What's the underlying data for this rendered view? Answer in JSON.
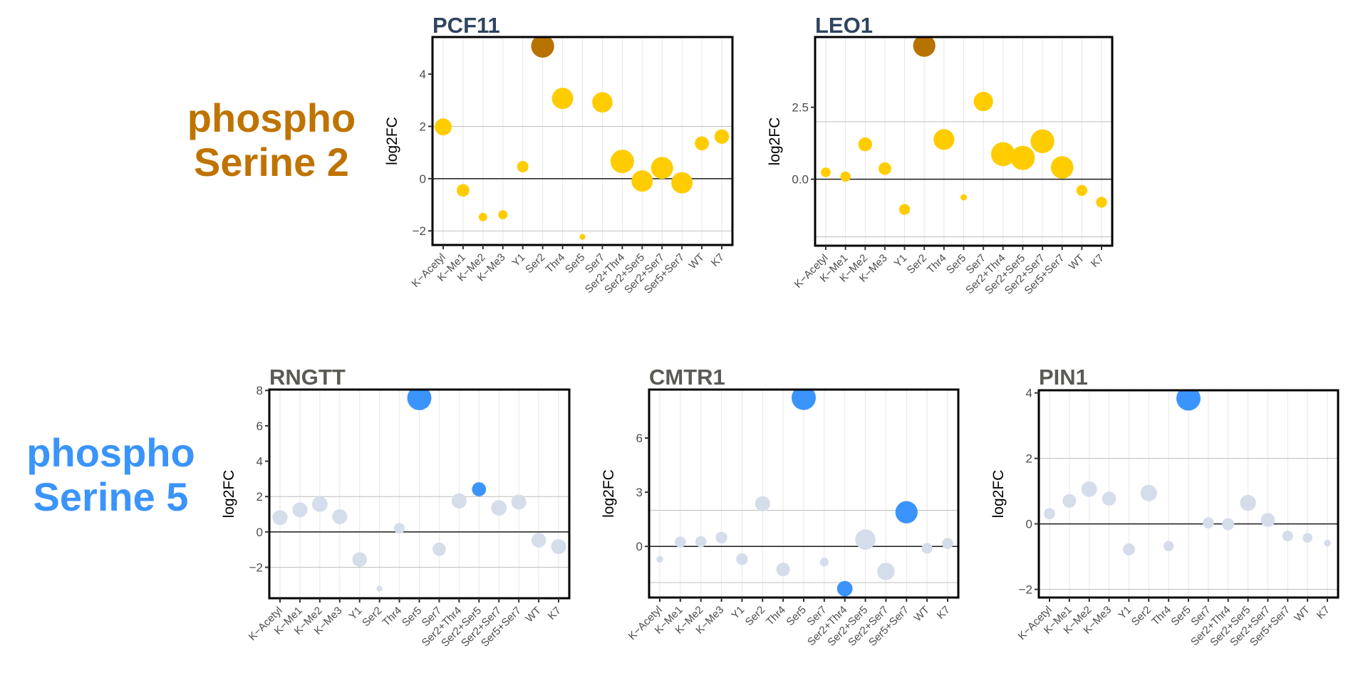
{
  "row_labels": {
    "serine2": {
      "line1": "phospho",
      "line2": "Serine 2",
      "color": "#bf7300"
    },
    "serine5": {
      "line1": "phospho",
      "line2": "Serine 5",
      "color": "#3a94fb"
    }
  },
  "colors": {
    "serine2_point": "#ffcc00",
    "serine2_highlight": "#b87200",
    "serine5_point": "#d5dcea",
    "serine5_highlight": "#3a94fb",
    "top_title": "#2e4460",
    "bottom_title": "#5b5b55"
  },
  "chart_data": [
    {
      "id": "pcf11",
      "type": "scatter",
      "title": "PCF11",
      "group": "serine2",
      "xlabel": "",
      "ylabel": "log2FC",
      "categories": [
        "K−Acetyl",
        "K−Me1",
        "K−Me2",
        "K−Me3",
        "Y1",
        "Ser2",
        "Thr4",
        "Ser5",
        "Ser7",
        "Ser2+Thr4",
        "Ser2+Ser5",
        "Ser2+Ser7",
        "Ser5+Ser7",
        "WT",
        "K7"
      ],
      "values": [
        1.98,
        -0.45,
        -1.47,
        -1.38,
        0.46,
        5.07,
        3.07,
        -2.23,
        2.92,
        0.66,
        -0.09,
        0.41,
        -0.16,
        1.35,
        1.61
      ],
      "sizes": [
        0.7,
        0.52,
        0.35,
        0.38,
        0.47,
        0.95,
        0.88,
        0.24,
        0.84,
        0.97,
        0.88,
        0.91,
        0.88,
        0.58,
        0.6
      ],
      "highlight": [
        false,
        false,
        false,
        false,
        false,
        true,
        false,
        false,
        false,
        false,
        false,
        false,
        false,
        false,
        false
      ],
      "yticks": [
        -2,
        0,
        2,
        4
      ],
      "ytick_labels": [
        "−2",
        "0",
        "2",
        "4"
      ],
      "reference_lines": [
        -2,
        2
      ],
      "zero_line": 0,
      "ylim": [
        -2.54,
        5.42
      ],
      "grid": true
    },
    {
      "id": "leo1",
      "type": "scatter",
      "title": "LEO1",
      "group": "serine2",
      "xlabel": "",
      "ylabel": "log2FC",
      "categories": [
        "K−Acetyl",
        "K−Me1",
        "K−Me2",
        "K−Me3",
        "Y1",
        "Ser2",
        "Thr4",
        "Ser5",
        "Ser7",
        "Ser2+Thr4",
        "Ser2+Ser5",
        "Ser2+Ser7",
        "Ser5+Ser7",
        "WT",
        "K7"
      ],
      "values": [
        0.24,
        0.09,
        1.21,
        0.37,
        -1.05,
        4.64,
        1.38,
        -0.63,
        2.7,
        0.87,
        0.74,
        1.32,
        0.41,
        -0.39,
        -0.8
      ],
      "sizes": [
        0.4,
        0.42,
        0.57,
        0.52,
        0.45,
        0.92,
        0.86,
        0.26,
        0.8,
        0.99,
        1.0,
        0.98,
        0.93,
        0.45,
        0.45
      ],
      "highlight": [
        false,
        false,
        false,
        false,
        false,
        true,
        false,
        false,
        false,
        false,
        false,
        false,
        false,
        false,
        false
      ],
      "yticks": [
        0.0,
        2.5
      ],
      "ytick_labels": [
        "0.0",
        "2.5"
      ],
      "reference_lines": [
        -2,
        2
      ],
      "zero_line": 0,
      "ylim": [
        -2.31,
        4.94
      ],
      "grid": true
    },
    {
      "id": "rngtt",
      "type": "scatter",
      "title": "RNGTT",
      "group": "serine5",
      "xlabel": "",
      "ylabel": "log2FC",
      "categories": [
        "K−Acetyl",
        "K−Me1",
        "K−Me2",
        "K−Me3",
        "Y1",
        "Ser2",
        "Thr4",
        "Ser5",
        "Ser7",
        "Ser2+Thr4",
        "Ser2+Ser5",
        "Ser2+Ser7",
        "Ser5+Ser7",
        "WT",
        "K7"
      ],
      "values": [
        0.81,
        1.25,
        1.57,
        0.86,
        -1.56,
        -3.21,
        0.2,
        7.57,
        -0.98,
        1.75,
        2.41,
        1.36,
        1.69,
        -0.47,
        -0.83
      ],
      "sizes": [
        0.62,
        0.62,
        0.64,
        0.62,
        0.6,
        0.24,
        0.44,
        1.0,
        0.55,
        0.62,
        0.58,
        0.64,
        0.62,
        0.6,
        0.62
      ],
      "highlight": [
        false,
        false,
        false,
        false,
        false,
        false,
        false,
        true,
        false,
        false,
        true,
        false,
        false,
        false,
        false
      ],
      "yticks": [
        -2,
        0,
        2,
        4,
        6,
        8
      ],
      "ytick_labels": [
        "−2",
        "0",
        "2",
        "4",
        "6",
        "8"
      ],
      "reference_lines": [
        -2,
        2
      ],
      "zero_line": 0,
      "ylim": [
        -3.75,
        8.05
      ],
      "grid": true
    },
    {
      "id": "cmtr1",
      "type": "scatter",
      "title": "CMTR1",
      "group": "serine5",
      "xlabel": "",
      "ylabel": "log2FC",
      "categories": [
        "K−Acetyl",
        "K−Me1",
        "K−Me2",
        "K−Me3",
        "Y1",
        "Ser2",
        "Thr4",
        "Ser5",
        "Ser7",
        "Ser2+Thr4",
        "Ser2+Ser5",
        "Ser2+Ser7",
        "Ser5+Ser7",
        "WT",
        "K7"
      ],
      "values": [
        -0.71,
        0.24,
        0.26,
        0.49,
        -0.71,
        2.36,
        -1.28,
        8.22,
        -0.87,
        -2.34,
        0.38,
        -1.39,
        1.89,
        -0.11,
        0.16
      ],
      "sizes": [
        0.28,
        0.46,
        0.46,
        0.48,
        0.48,
        0.62,
        0.56,
        1.0,
        0.36,
        0.64,
        0.84,
        0.72,
        0.92,
        0.44,
        0.46
      ],
      "highlight": [
        false,
        false,
        false,
        false,
        false,
        false,
        false,
        true,
        false,
        true,
        false,
        false,
        true,
        false,
        false
      ],
      "yticks": [
        0,
        3,
        6
      ],
      "ytick_labels": [
        "0",
        "3",
        "6"
      ],
      "reference_lines": [
        -2,
        2
      ],
      "zero_line": 0,
      "ylim": [
        -2.83,
        8.68
      ],
      "grid": true
    },
    {
      "id": "pin1",
      "type": "scatter",
      "title": "PIN1",
      "group": "serine5",
      "xlabel": "",
      "ylabel": "log2FC",
      "categories": [
        "K−Acetyl",
        "K−Me1",
        "K−Me2",
        "K−Me3",
        "Y1",
        "Ser2",
        "Thr4",
        "Ser5",
        "Ser7",
        "Ser2+Thr4",
        "Ser2+Ser5",
        "Ser2+Ser7",
        "Ser5+Ser7",
        "WT",
        "K7"
      ],
      "values": [
        0.31,
        0.7,
        1.06,
        0.77,
        -0.78,
        0.94,
        -0.68,
        3.83,
        0.03,
        -0.01,
        0.64,
        0.12,
        -0.37,
        -0.43,
        -0.59
      ],
      "sizes": [
        0.46,
        0.56,
        0.64,
        0.58,
        0.5,
        0.68,
        0.42,
        1.0,
        0.46,
        0.5,
        0.66,
        0.58,
        0.44,
        0.4,
        0.28
      ],
      "highlight": [
        false,
        false,
        false,
        false,
        false,
        false,
        false,
        true,
        false,
        false,
        false,
        false,
        false,
        false,
        false
      ],
      "yticks": [
        -2,
        0,
        2,
        4
      ],
      "ytick_labels": [
        "−2",
        "0",
        "2",
        "4"
      ],
      "reference_lines": [
        -2,
        2
      ],
      "zero_line": 0,
      "ylim": [
        -2.25,
        4.08
      ],
      "grid": true
    }
  ]
}
